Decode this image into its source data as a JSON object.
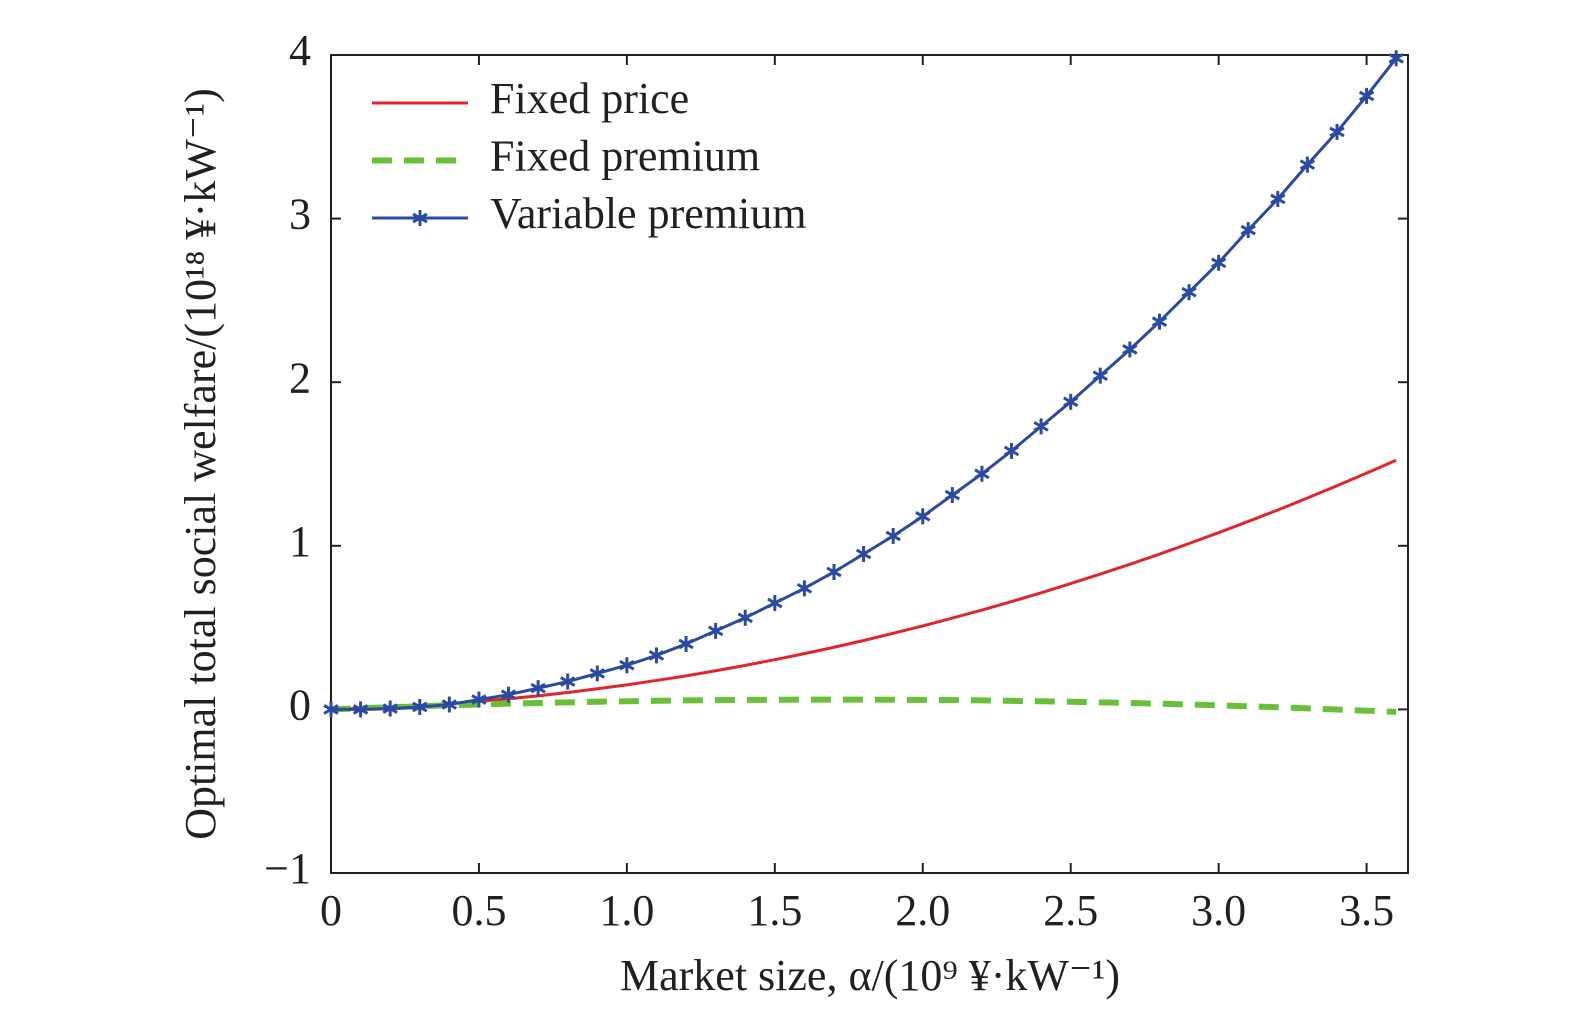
{
  "chart_data": {
    "type": "line",
    "ylabel": "Optimal total social welfare/(10¹⁸ ¥·kW⁻¹)",
    "xlabel": "Market size, α/(10⁹ ¥·kW⁻¹)",
    "x": [
      0,
      0.1,
      0.2,
      0.3,
      0.4,
      0.5,
      0.6,
      0.7,
      0.8,
      0.9,
      1.0,
      1.1,
      1.2,
      1.3,
      1.4,
      1.5,
      1.6,
      1.7,
      1.8,
      1.9,
      2.0,
      2.1,
      2.2,
      2.3,
      2.4,
      2.5,
      2.6,
      2.7,
      2.8,
      2.9,
      3.0,
      3.1,
      3.2,
      3.3,
      3.4,
      3.5,
      3.6
    ],
    "series": [
      {
        "name": "Fixed price",
        "color": "#e0262c",
        "linestyle": "solid",
        "values": [
          0,
          0.006,
          0.013,
          0.023,
          0.035,
          0.049,
          0.065,
          0.083,
          0.103,
          0.126,
          0.15,
          0.177,
          0.205,
          0.236,
          0.269,
          0.304,
          0.341,
          0.38,
          0.421,
          0.465,
          0.51,
          0.558,
          0.607,
          0.659,
          0.713,
          0.769,
          0.827,
          0.887,
          0.949,
          1.014,
          1.08,
          1.149,
          1.219,
          1.292,
          1.367,
          1.444,
          1.523
        ]
      },
      {
        "name": "Fixed premium",
        "color": "#6abf3a",
        "linestyle": "dashed",
        "values": [
          0,
          0.007,
          0.013,
          0.019,
          0.025,
          0.03,
          0.035,
          0.039,
          0.043,
          0.047,
          0.05,
          0.053,
          0.055,
          0.057,
          0.058,
          0.059,
          0.06,
          0.06,
          0.06,
          0.059,
          0.058,
          0.057,
          0.055,
          0.052,
          0.05,
          0.047,
          0.043,
          0.039,
          0.035,
          0.03,
          0.025,
          0.019,
          0.013,
          0.006,
          -0.0004,
          -0.008,
          -0.015
        ]
      },
      {
        "name": "Variable premium",
        "color": "#2b4aa0",
        "linestyle": "solid",
        "marker": "asterisk",
        "values": [
          0,
          0,
          0.005,
          0.015,
          0.03,
          0.06,
          0.09,
          0.13,
          0.17,
          0.22,
          0.27,
          0.33,
          0.4,
          0.48,
          0.56,
          0.65,
          0.74,
          0.84,
          0.95,
          1.06,
          1.18,
          1.31,
          1.44,
          1.58,
          1.73,
          1.88,
          2.04,
          2.2,
          2.37,
          2.55,
          2.73,
          2.93,
          3.12,
          3.33,
          3.53,
          3.75,
          3.98
        ]
      }
    ],
    "xlim": [
      0,
      3.64
    ],
    "ylim": [
      -1,
      4
    ],
    "xticks": [
      0,
      0.5,
      {
        "value": 1,
        "label": "1.0"
      },
      1.5,
      {
        "value": 2,
        "label": "2.0"
      },
      2.5,
      {
        "value": 3,
        "label": "3.0"
      },
      3.5
    ],
    "yticks": [
      {
        "value": -1,
        "label": "−1"
      },
      0,
      1,
      2,
      3,
      4
    ],
    "legend": "upper left",
    "grid": false
  }
}
